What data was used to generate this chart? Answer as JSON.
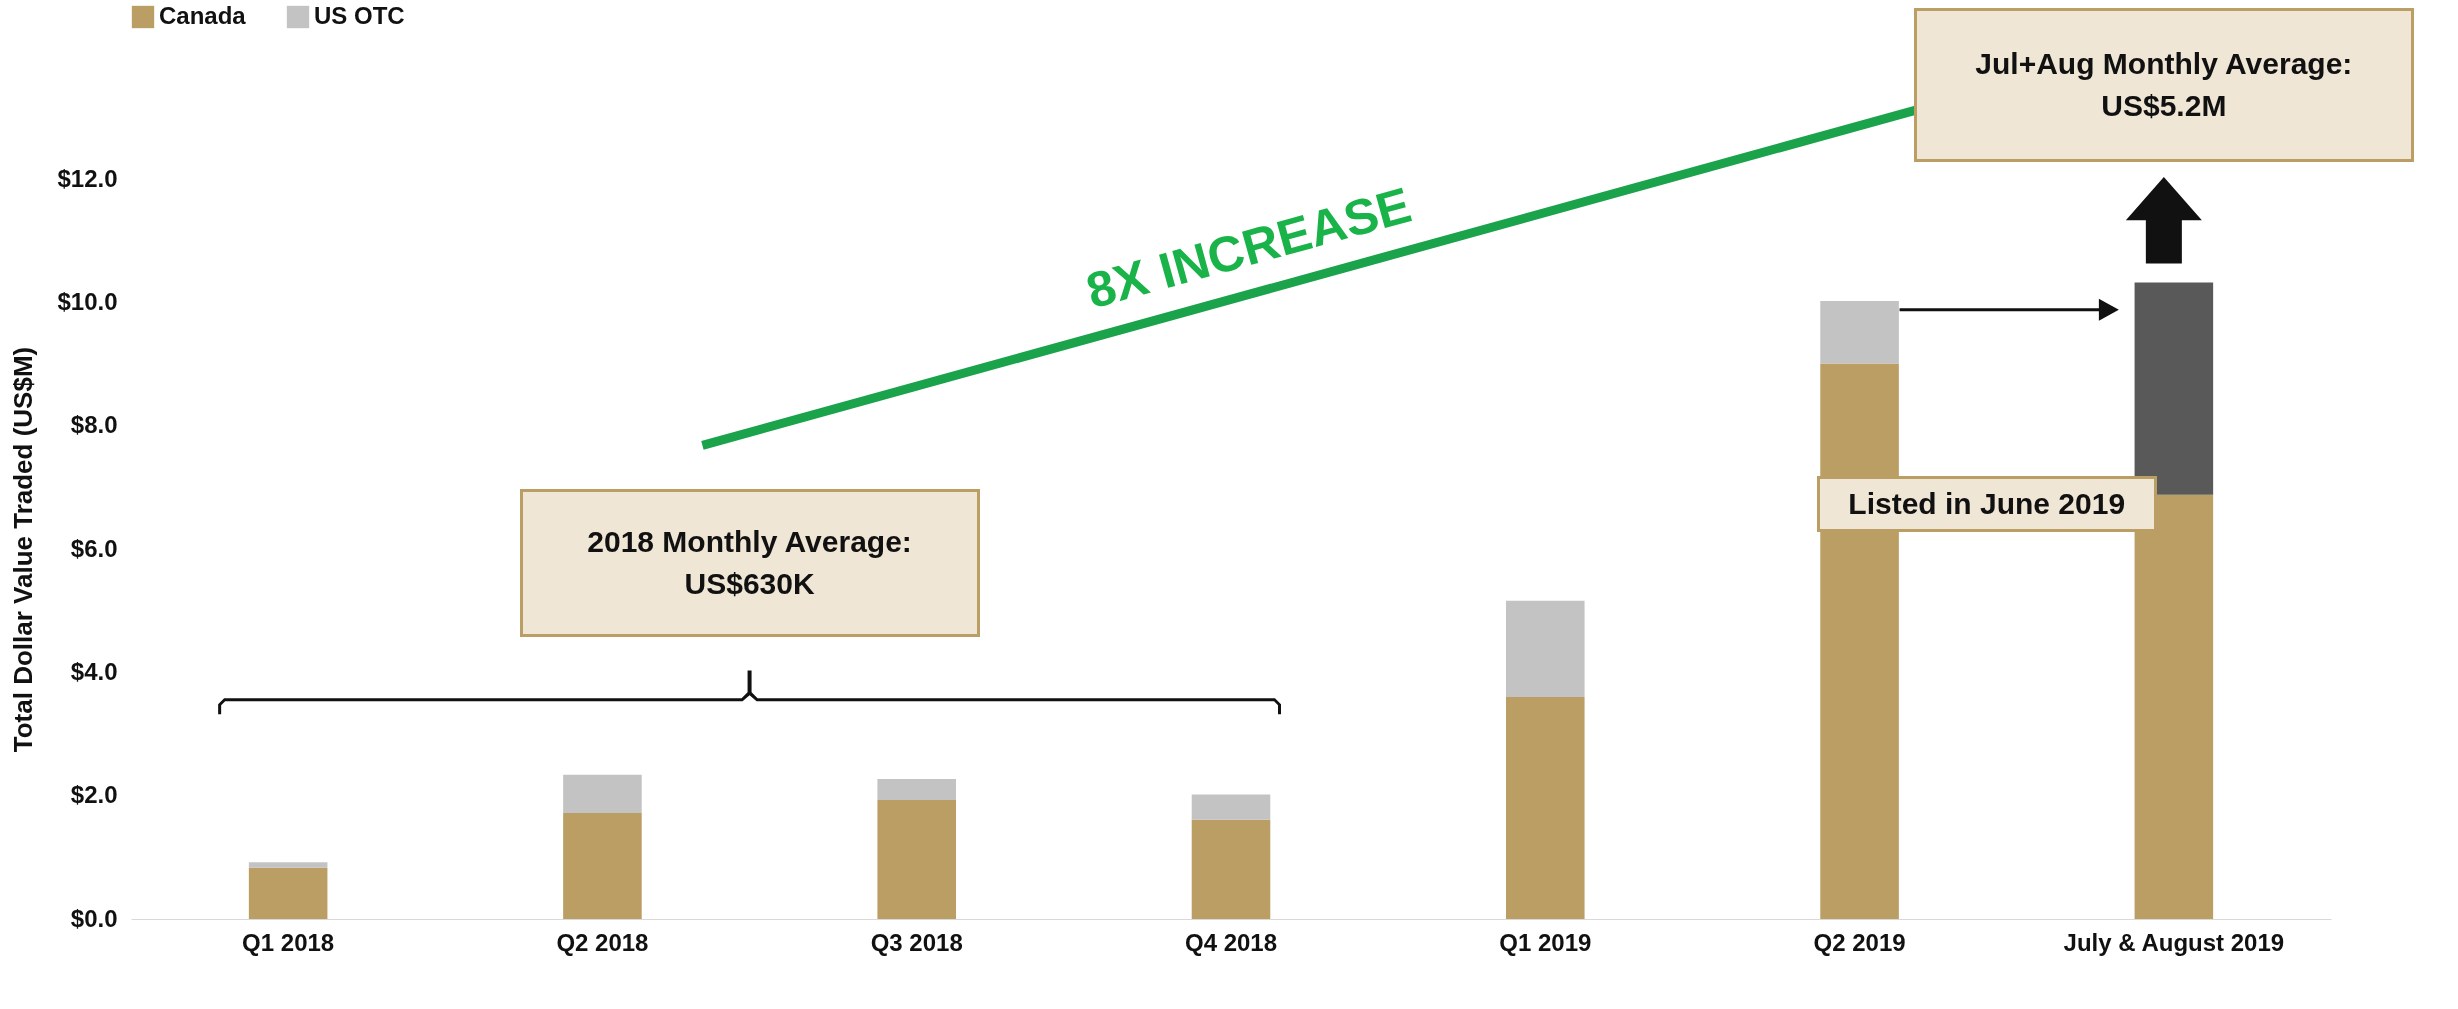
{
  "chart_data": {
    "type": "bar",
    "stacked": true,
    "ylabel": "Total Dollar Value Traded (US$M)",
    "categories": [
      "Q1 2018",
      "Q2 2018",
      "Q3 2018",
      "Q4 2018",
      "Q1 2019",
      "Q2 2019",
      "July & August 2019"
    ],
    "series": [
      {
        "name": "Canada",
        "color": "#bb9e63",
        "values": [
          0.83,
          1.72,
          1.93,
          1.61,
          3.6,
          9.01,
          6.88
        ]
      },
      {
        "name": "US OTC",
        "color": "#c3c3c3",
        "values": [
          0.09,
          0.62,
          0.34,
          0.41,
          1.56,
          1.01,
          null
        ]
      },
      {
        "color": "#595959",
        "values": [
          null,
          null,
          null,
          null,
          null,
          null,
          3.44
        ]
      }
    ],
    "ylim": [
      0,
      12
    ],
    "yticks": [
      {
        "value": 0,
        "label": "$0.0"
      },
      {
        "value": 2,
        "label": "$2.0"
      },
      {
        "value": 4,
        "label": "$4.0"
      },
      {
        "value": 6,
        "label": "$6.0"
      },
      {
        "value": 8,
        "label": "$8.0"
      },
      {
        "value": 10,
        "label": "$10.0"
      },
      {
        "value": 12,
        "label": "$12.0"
      }
    ],
    "grid": false,
    "legend": "top left",
    "annotations": [
      "8X INCREASE",
      "2018 Monthly Average: US$630K",
      "Jul+Aug Monthly Average: US$5.2M",
      "Listed in June 2019"
    ]
  }
}
